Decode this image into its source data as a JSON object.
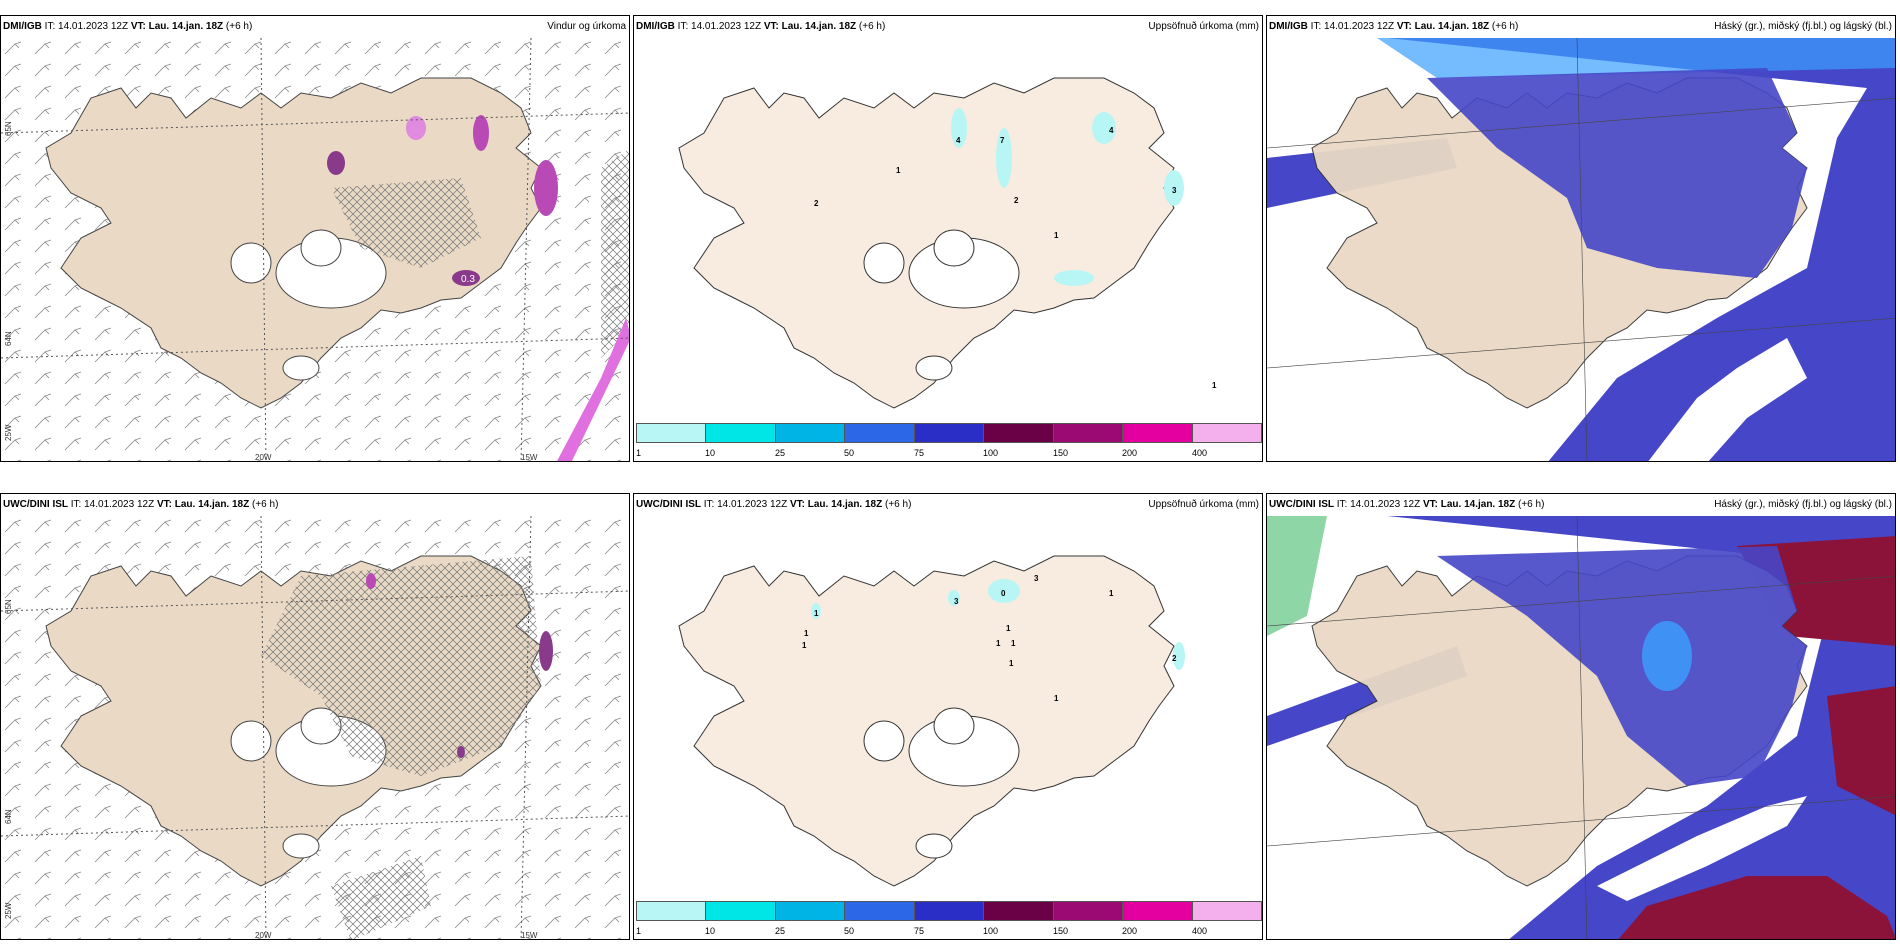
{
  "panels": [
    {
      "model": "DMI/IGB",
      "it_label": "IT:",
      "it": "14.01.2023 12Z",
      "vt_label": "VT:",
      "vt": "Lau. 14.jan. 18Z",
      "lead": "(+6 h)",
      "title": "Vindur og úrkoma",
      "type": "wind"
    },
    {
      "model": "DMI/IGB",
      "it_label": "IT:",
      "it": "14.01.2023 12Z",
      "vt_label": "VT:",
      "vt": "Lau. 14.jan. 18Z",
      "lead": "(+6 h)",
      "title": "Uppsöfnuð úrkoma (mm)",
      "type": "accum",
      "labels": [
        "1",
        "2",
        "4",
        "7",
        "2",
        "1",
        "4",
        "3",
        "1"
      ]
    },
    {
      "model": "DMI/IGB",
      "it_label": "IT:",
      "it": "14.01.2023 12Z",
      "vt_label": "VT:",
      "vt": "Lau. 14.jan. 18Z",
      "lead": "(+6 h)",
      "title": "Háský (gr.), miðský (fj.bl.) og lágský (bl.)",
      "type": "cloud"
    },
    {
      "model": "UWC/DINI ISL",
      "it_label": "IT:",
      "it": "14.01.2023 12Z",
      "vt_label": "VT:",
      "vt": "Lau. 14.jan. 18Z",
      "lead": "(+6 h)",
      "title": "Vindur og úrkoma",
      "type": "wind"
    },
    {
      "model": "UWC/DINI ISL",
      "it_label": "IT:",
      "it": "14.01.2023 12Z",
      "vt_label": "VT:",
      "vt": "Lau. 14.jan. 18Z",
      "lead": "(+6 h)",
      "title": "Uppsöfnuð úrkoma (mm)",
      "type": "accum",
      "labels": [
        "1",
        "3",
        "0",
        "3",
        "1",
        "1",
        "1",
        "1",
        "1",
        "1",
        "1",
        "2",
        "1"
      ]
    },
    {
      "model": "UWC/DINI ISL",
      "it_label": "IT:",
      "it": "14.01.2023 12Z",
      "vt_label": "VT:",
      "vt": "Lau. 14.jan. 18Z",
      "lead": "(+6 h)",
      "title": "Háský (gr.), miðský (fj.bl.) og lágský (bl.)",
      "type": "cloud"
    }
  ],
  "wind_labels": {
    "lat_top": "65N",
    "lat_bottom": "64N",
    "lon_left": "25W",
    "lon_mid": "20W",
    "lon_right": "15W",
    "precip_value": "0.3"
  },
  "colorbar": {
    "colors": [
      "#b8f6f6",
      "#00e6e6",
      "#00b4e6",
      "#2c67e8",
      "#2a2ec7",
      "#6a0046",
      "#9b0a72",
      "#e400a0",
      "#f3b0ec"
    ],
    "labels": [
      "1",
      "10",
      "25",
      "50",
      "75",
      "100",
      "150",
      "200",
      "400"
    ]
  },
  "colors": {
    "land": "#f0e2d0",
    "land_wind": "#e9d9c5",
    "cloud_low": "#4646c8",
    "cloud_mid": "#3aa0ff",
    "cloud_high": "#8b1238"
  }
}
